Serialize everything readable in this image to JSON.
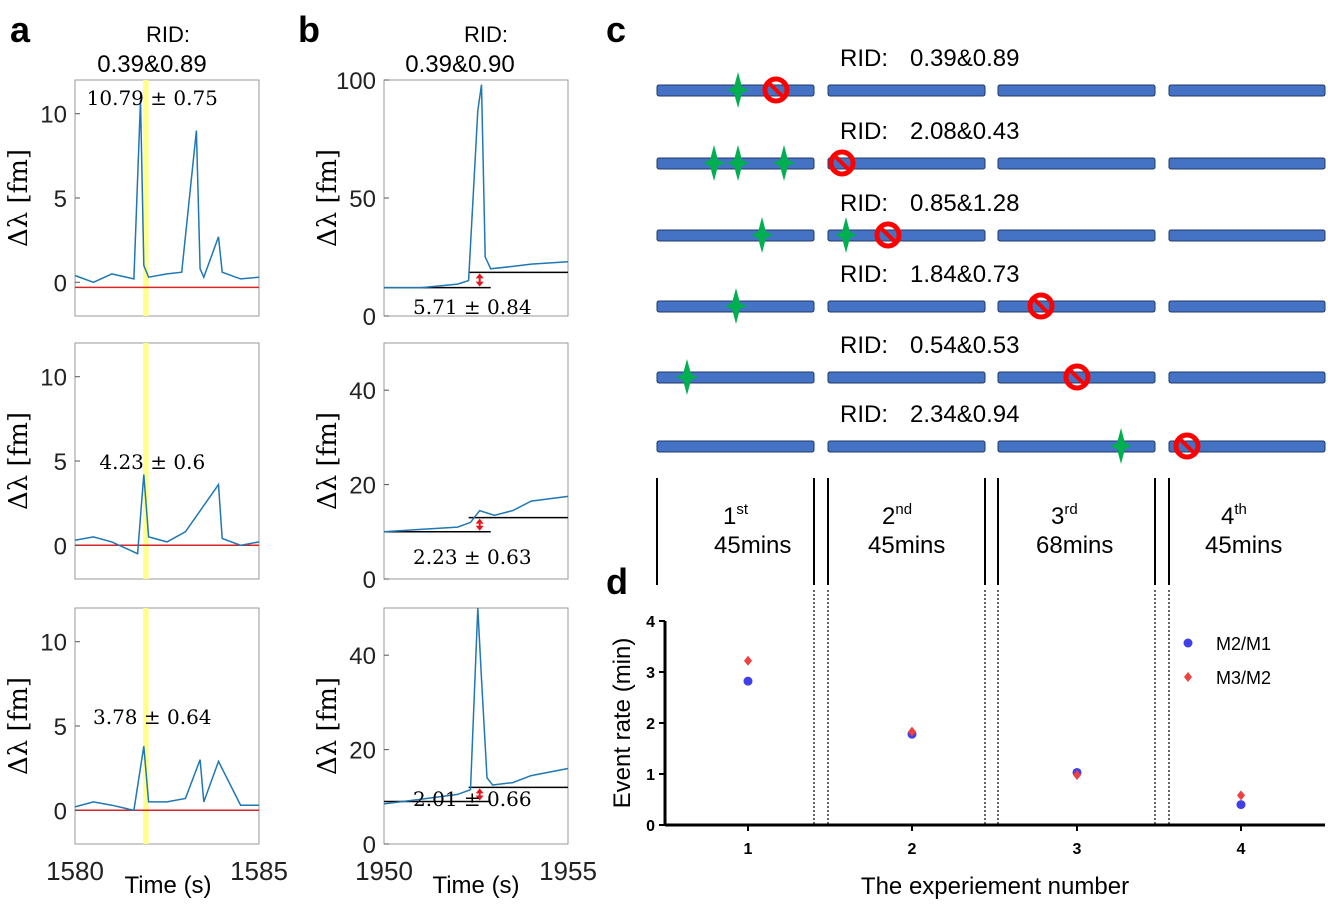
{
  "panel_labels": [
    "a",
    "b",
    "c",
    "d"
  ],
  "panel_a": {
    "rid_line1": "RID:",
    "rid_line2": "0.39&0.89",
    "x_ticks": [
      "1580",
      "1585"
    ],
    "xlabel": "Time (s)",
    "ylabel": "Δλ [fm]",
    "colors": {
      "trace": "#1f77b4",
      "baseline": "#d62728",
      "highlight": "#ffff80"
    }
  },
  "panel_b": {
    "rid_line1": "RID:",
    "rid_line2": "0.39&0.90",
    "x_ticks": [
      "1950",
      "1955"
    ],
    "xlabel": "Time (s)",
    "ylabel": "Δλ [fm]",
    "colors": {
      "trace": "#1f77b4",
      "step": "#000000",
      "arrow": "#e8141d"
    }
  },
  "panel_c": {
    "rows": [
      {
        "rid_label": "RID:",
        "rid_value": "0.39&0.89"
      },
      {
        "rid_label": "RID:",
        "rid_value": "2.08&0.43"
      },
      {
        "rid_label": "RID:",
        "rid_value": "0.85&1.28"
      },
      {
        "rid_label": "RID:",
        "rid_value": "1.84&0.73"
      },
      {
        "rid_label": "RID:",
        "rid_value": "0.54&0.53"
      },
      {
        "rid_label": "RID:",
        "rid_value": "2.34&0.94"
      }
    ],
    "sessions": [
      {
        "ordinal": "1",
        "suffix": "st",
        "duration": "45mins"
      },
      {
        "ordinal": "2",
        "suffix": "nd",
        "duration": "45mins"
      },
      {
        "ordinal": "3",
        "suffix": "rd",
        "duration": "68mins"
      },
      {
        "ordinal": "4",
        "suffix": "th",
        "duration": "45mins"
      }
    ],
    "colors": {
      "bar": "#4472c4",
      "bar_edge": "#1f3864",
      "star": "#00b050",
      "no_sign": "#ff0000"
    }
  },
  "chart_data": [
    {
      "panel": "a",
      "type": "line",
      "xlabel": "Time (s)",
      "ylabel": "Δλ [fm]",
      "xlim": [
        1580,
        1585
      ],
      "x_ticks": [
        1580,
        1585
      ],
      "subplots": [
        {
          "ylim": [
            -2,
            12
          ],
          "y_ticks": [
            0,
            5,
            10
          ],
          "annotation": "10.79 ± 0.75",
          "baseline": -0.3,
          "x": [
            1580.0,
            1580.5,
            1581.0,
            1581.6,
            1581.78,
            1581.87,
            1582.0,
            1582.5,
            1582.9,
            1583.3,
            1583.4,
            1583.5,
            1583.9,
            1584.0,
            1584.5,
            1585.0
          ],
          "y": [
            0.4,
            0.0,
            0.5,
            0.2,
            10.8,
            1.0,
            0.3,
            0.5,
            0.6,
            9.0,
            0.8,
            0.3,
            2.7,
            0.6,
            0.2,
            0.3
          ]
        },
        {
          "ylim": [
            -2,
            12
          ],
          "y_ticks": [
            0,
            5,
            10
          ],
          "annotation": "4.23 ± 0.6",
          "baseline": 0.0,
          "x": [
            1580.0,
            1580.5,
            1581.0,
            1581.7,
            1581.87,
            1582.0,
            1582.5,
            1583.0,
            1583.9,
            1584.0,
            1584.5,
            1585.0
          ],
          "y": [
            0.3,
            0.5,
            0.2,
            -0.5,
            4.2,
            0.5,
            0.2,
            0.8,
            3.6,
            0.4,
            0.0,
            0.2
          ]
        },
        {
          "ylim": [
            -2,
            12
          ],
          "y_ticks": [
            0,
            5,
            10
          ],
          "annotation": "3.78 ± 0.64",
          "baseline": 0.0,
          "x": [
            1580.0,
            1580.5,
            1581.0,
            1581.6,
            1581.87,
            1582.0,
            1582.5,
            1583.0,
            1583.4,
            1583.5,
            1583.9,
            1584.5,
            1585.0
          ],
          "y": [
            0.2,
            0.5,
            0.3,
            0.0,
            3.8,
            0.5,
            0.5,
            0.7,
            3.0,
            0.5,
            2.9,
            0.3,
            0.3
          ]
        }
      ],
      "highlight_x": [
        1581.85,
        1582.0
      ]
    },
    {
      "panel": "b",
      "type": "line",
      "xlabel": "Time (s)",
      "ylabel": "Δλ [fm]",
      "xlim": [
        1950,
        1955
      ],
      "x_ticks": [
        1950,
        1955
      ],
      "subplots": [
        {
          "ylim": [
            0,
            100
          ],
          "y_ticks": [
            0,
            50,
            100
          ],
          "annotation": "5.71 ± 0.84",
          "step_before": 12,
          "step_after": 18.5,
          "step_x": 1952.3,
          "x": [
            1950.0,
            1951.0,
            1952.0,
            1952.3,
            1952.55,
            1952.65,
            1952.75,
            1952.9,
            1953.5,
            1954.0,
            1955.0
          ],
          "y": [
            12,
            12,
            13.5,
            15,
            87,
            98,
            25,
            20,
            21,
            22,
            23
          ]
        },
        {
          "ylim": [
            0,
            50
          ],
          "y_ticks": [
            0,
            20,
            40
          ],
          "annotation": "2.23 ± 0.63",
          "step_before": 10,
          "step_after": 13,
          "step_x": 1952.3,
          "x": [
            1950.0,
            1951.0,
            1952.0,
            1952.35,
            1952.6,
            1953.0,
            1953.5,
            1954.0,
            1955.0
          ],
          "y": [
            10,
            10.5,
            11,
            12,
            14.5,
            13.5,
            14.5,
            16.5,
            17.5
          ]
        },
        {
          "ylim": [
            0,
            50
          ],
          "y_ticks": [
            0,
            20,
            40
          ],
          "annotation": "2.01 ± 0.66",
          "step_before": 9,
          "step_after": 12,
          "step_x": 1952.3,
          "x": [
            1950.0,
            1951.0,
            1952.0,
            1952.35,
            1952.55,
            1952.65,
            1952.8,
            1952.95,
            1953.5,
            1954.0,
            1955.0
          ],
          "y": [
            8.5,
            9.5,
            10.5,
            11.5,
            50,
            35,
            14,
            12.5,
            13,
            14.5,
            16
          ]
        }
      ]
    },
    {
      "panel": "d",
      "type": "scatter",
      "xlabel": "The experiement number",
      "ylabel": "Event rate (min)",
      "x_ticks": [
        1,
        2,
        3,
        4
      ],
      "y_ticks": [
        0,
        1,
        2,
        3,
        4
      ],
      "ylim": [
        0,
        4
      ],
      "legend_position": "top-right",
      "series": [
        {
          "name": "M2/M1",
          "color": "#4040e8",
          "marker": "circle",
          "x": [
            1,
            2,
            3,
            4
          ],
          "y": [
            2.82,
            1.78,
            1.03,
            0.4
          ]
        },
        {
          "name": "M3/M2",
          "color": "#f04040",
          "marker": "diamond",
          "x": [
            1,
            2,
            3,
            4
          ],
          "y": [
            3.22,
            1.83,
            0.98,
            0.58
          ]
        }
      ]
    }
  ]
}
